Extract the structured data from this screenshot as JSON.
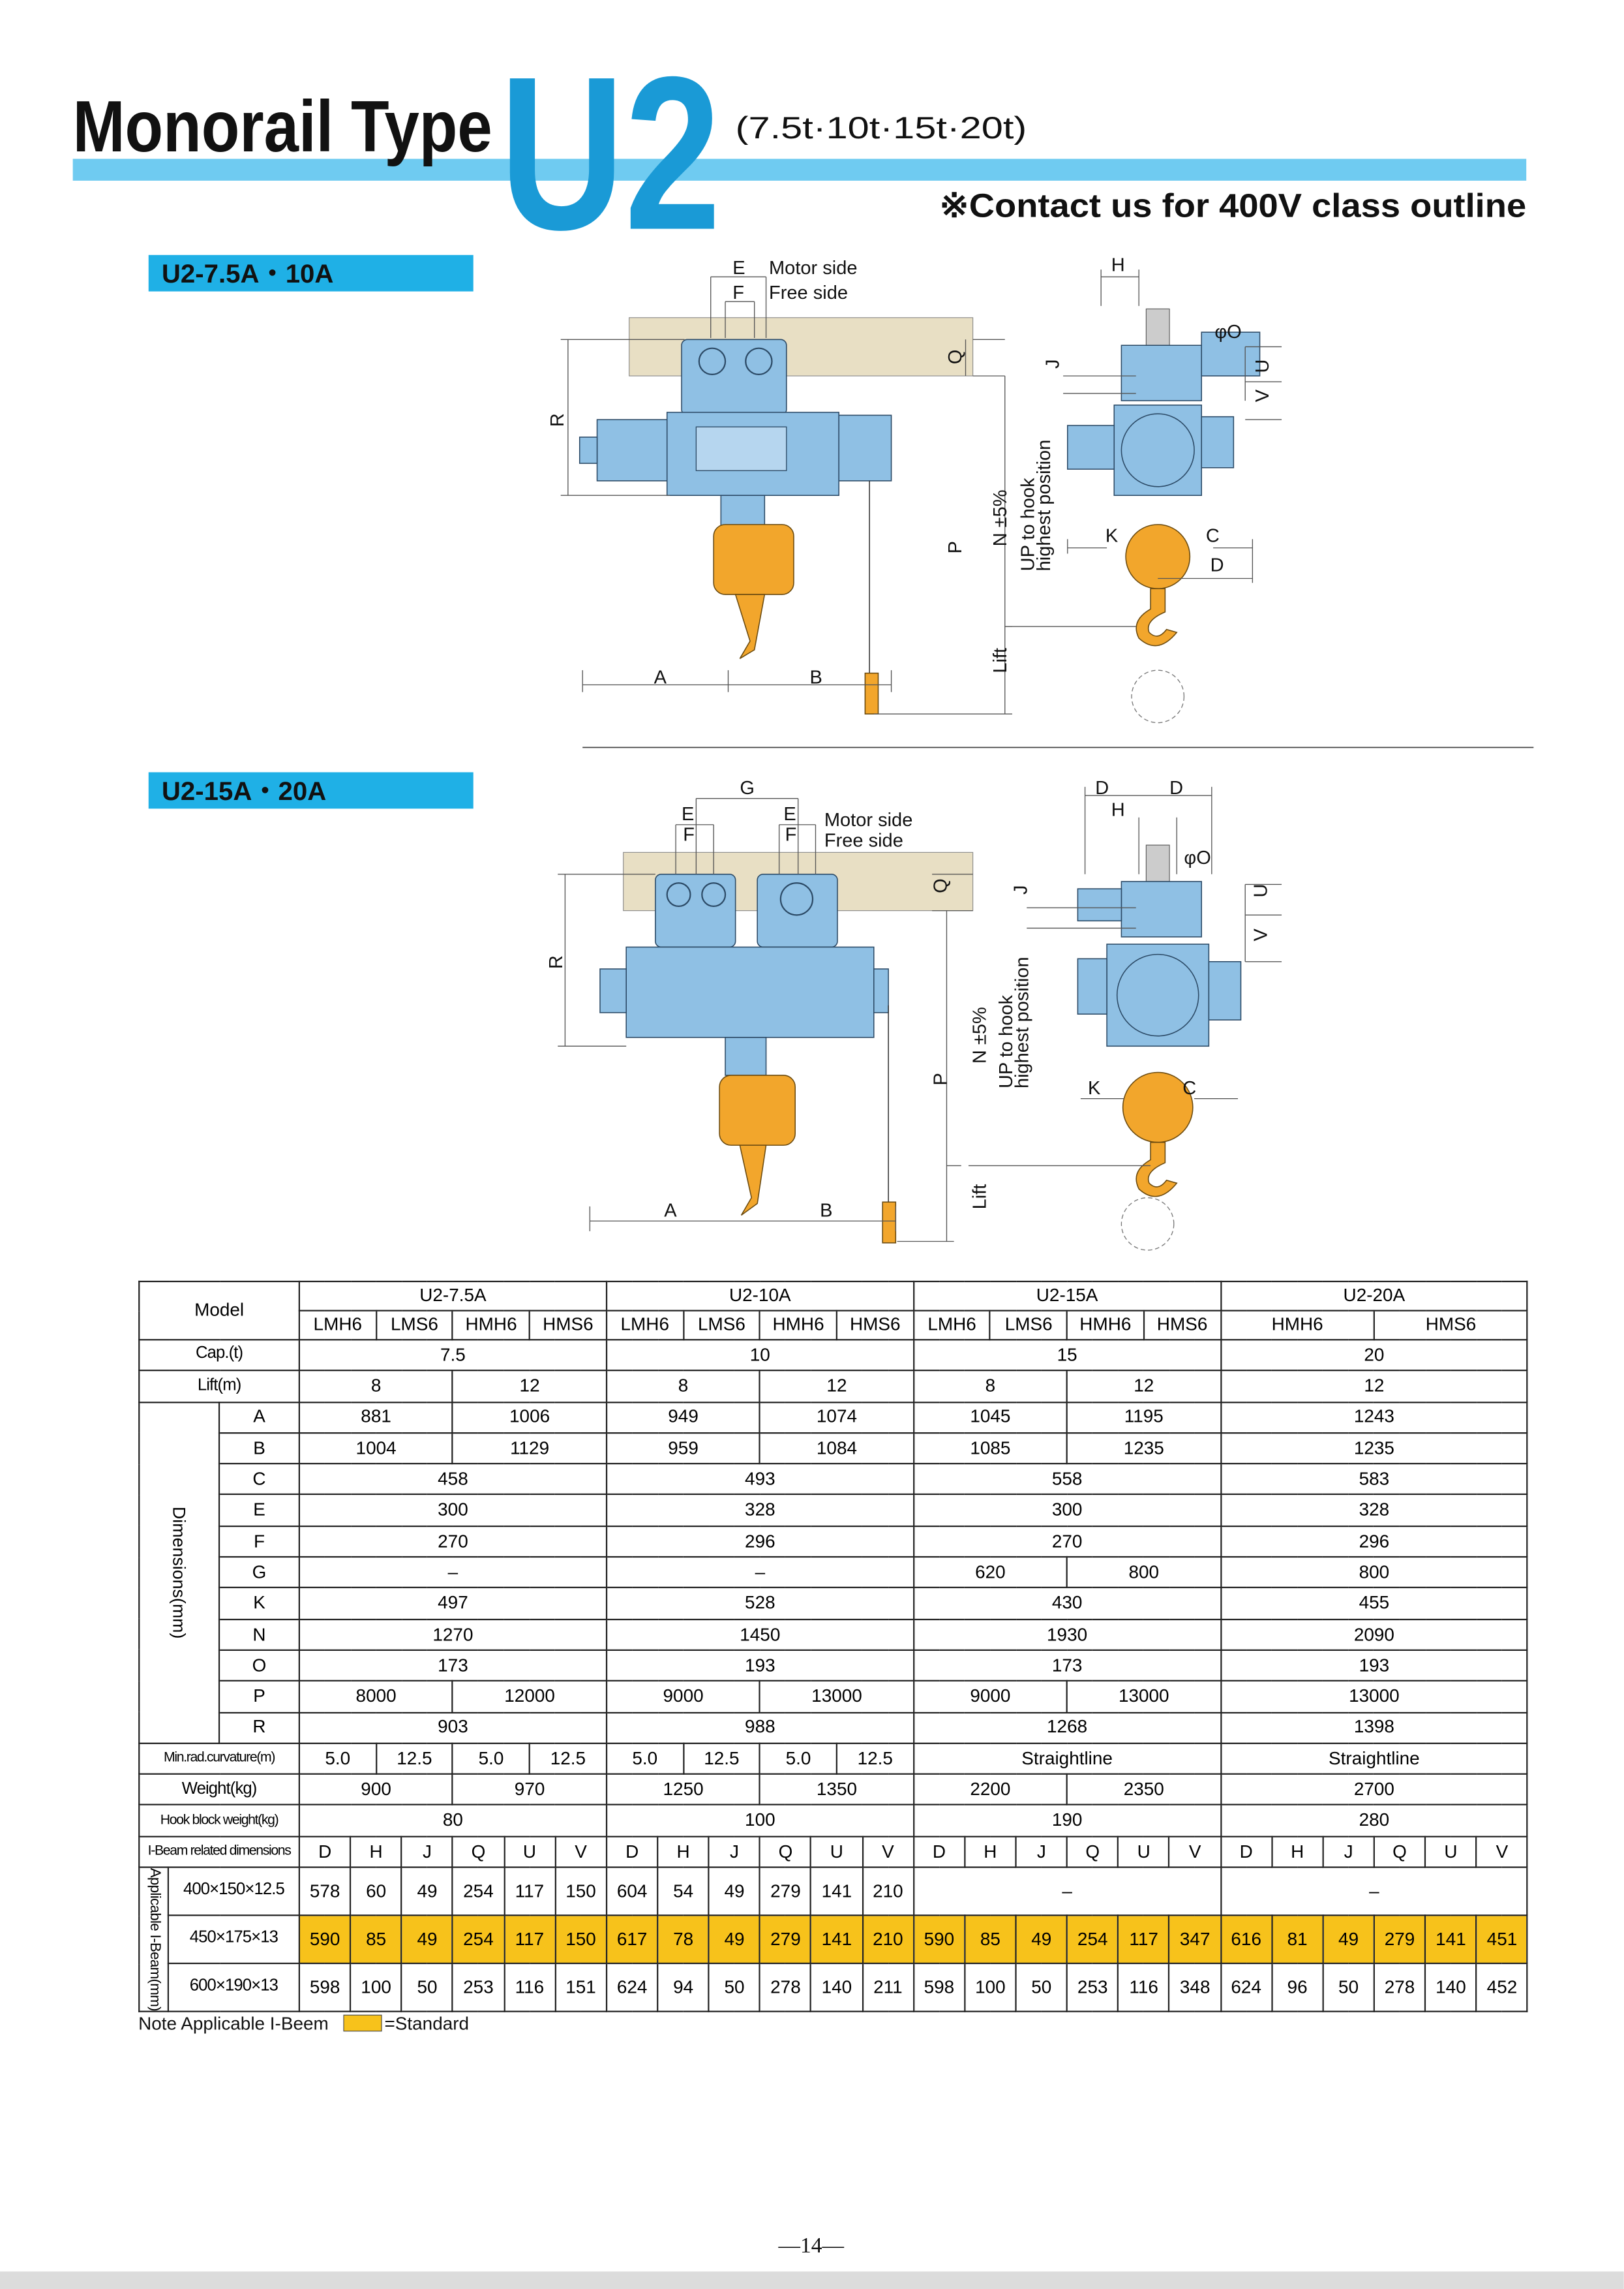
{
  "header": {
    "title": "Monorail Type",
    "model": "U2",
    "capacities": "(7.5t·10t·15t·20t)",
    "note": "※Contact us for 400V class outline"
  },
  "sections": [
    {
      "label": "U2-7.5A・10A",
      "front": [
        "E",
        "Motor side",
        "F",
        "Free side",
        "R",
        "Q",
        "P",
        "N ±5%",
        "UP to hook",
        "highest position",
        "Lift",
        "A",
        "B"
      ],
      "side": [
        "H",
        "φO",
        "J",
        "U",
        "V",
        "K",
        "C",
        "D"
      ]
    },
    {
      "label": "U2-15A・20A",
      "front": [
        "G",
        "E",
        "E",
        "F",
        "F",
        "Motor side",
        "Free side",
        "R",
        "Q",
        "P",
        "N ±5%",
        "UP to hook",
        "highest position",
        "Lift",
        "A",
        "B"
      ],
      "side": [
        "D",
        "D",
        "H",
        "φO",
        "J",
        "U",
        "V",
        "K",
        "C"
      ]
    }
  ],
  "table": {
    "model_header": "Model",
    "models": [
      "U2-7.5A",
      "U2-10A",
      "U2-15A",
      "U2-20A"
    ],
    "variants": [
      [
        "LMH6",
        "LMS6",
        "HMH6",
        "HMS6"
      ],
      [
        "LMH6",
        "LMS6",
        "HMH6",
        "HMS6"
      ],
      [
        "LMH6",
        "LMS6",
        "HMH6",
        "HMS6"
      ],
      [
        "HMH6",
        "HMS6"
      ]
    ],
    "rows_top": [
      {
        "label": "Cap.(t)",
        "values": [
          [
            7.5
          ],
          [
            10
          ],
          [
            15
          ],
          [
            20
          ]
        ]
      },
      {
        "label": "Lift(m)",
        "values": [
          [
            8,
            12
          ],
          [
            8,
            12
          ],
          [
            8,
            12
          ],
          [
            12
          ]
        ]
      }
    ],
    "dimensions": {
      "label": "Dimensions(mm)",
      "rows": [
        {
          "label": "A",
          "values": [
            [
              881,
              1006
            ],
            [
              949,
              1074
            ],
            [
              1045,
              1195
            ],
            [
              1243
            ]
          ]
        },
        {
          "label": "B",
          "values": [
            [
              1004,
              1129
            ],
            [
              959,
              1084
            ],
            [
              1085,
              1235
            ],
            [
              1235
            ]
          ]
        },
        {
          "label": "C",
          "values": [
            [
              458
            ],
            [
              493
            ],
            [
              558
            ],
            [
              583
            ]
          ]
        },
        {
          "label": "E",
          "values": [
            [
              300
            ],
            [
              328
            ],
            [
              300
            ],
            [
              328
            ]
          ]
        },
        {
          "label": "F",
          "values": [
            [
              270
            ],
            [
              296
            ],
            [
              270
            ],
            [
              296
            ]
          ]
        },
        {
          "label": "G",
          "values": [
            [
              "–"
            ],
            [
              "–"
            ],
            [
              620,
              800
            ],
            [
              800
            ]
          ]
        },
        {
          "label": "K",
          "values": [
            [
              497
            ],
            [
              528
            ],
            [
              430
            ],
            [
              455
            ]
          ]
        },
        {
          "label": "N",
          "values": [
            [
              1270
            ],
            [
              1450
            ],
            [
              1930
            ],
            [
              2090
            ]
          ]
        },
        {
          "label": "O",
          "values": [
            [
              173
            ],
            [
              193
            ],
            [
              173
            ],
            [
              193
            ]
          ]
        },
        {
          "label": "P",
          "values": [
            [
              8000,
              12000
            ],
            [
              9000,
              13000
            ],
            [
              9000,
              13000
            ],
            [
              13000
            ]
          ]
        },
        {
          "label": "R",
          "values": [
            [
              903
            ],
            [
              988
            ],
            [
              1268
            ],
            [
              1398
            ]
          ]
        }
      ]
    },
    "rows_bottom": [
      {
        "label": "Min.rad.curvature(m)",
        "values": [
          [
            "5.0",
            12.5,
            "5.0",
            12.5
          ],
          [
            "5.0",
            12.5,
            "5.0",
            12.5
          ],
          [
            "Straightline"
          ],
          [
            "Straightline"
          ]
        ]
      },
      {
        "label": "Weight(kg)",
        "values": [
          [
            900,
            970
          ],
          [
            1250,
            1350
          ],
          [
            2200,
            2350
          ],
          [
            2700
          ]
        ]
      },
      {
        "label": "Hook block weight(kg)",
        "values": [
          [
            80
          ],
          [
            100
          ],
          [
            190
          ],
          [
            280
          ]
        ]
      },
      {
        "label": "I-Beam related dimensions",
        "values": [
          [
            "D",
            "H",
            "J",
            "Q",
            "U",
            "V"
          ],
          [
            "D",
            "H",
            "J",
            "Q",
            "U",
            "V"
          ],
          [
            "D",
            "H",
            "J",
            "Q",
            "U",
            "V"
          ],
          [
            "D",
            "H",
            "J",
            "Q",
            "U",
            "V"
          ]
        ]
      }
    ],
    "beams": {
      "label": "Applicable I-Beam(mm)",
      "rows": [
        {
          "label": "400×150×12.5",
          "standard": false,
          "values": [
            [
              578,
              60,
              49,
              254,
              117,
              150
            ],
            [
              604,
              54,
              49,
              279,
              141,
              210
            ],
            [
              "–"
            ],
            [
              "–"
            ]
          ]
        },
        {
          "label": "450×175×13",
          "standard": true,
          "values": [
            [
              590,
              85,
              49,
              254,
              117,
              150
            ],
            [
              617,
              78,
              49,
              279,
              141,
              210
            ],
            [
              590,
              85,
              49,
              254,
              117,
              347
            ],
            [
              616,
              81,
              49,
              279,
              141,
              451
            ]
          ]
        },
        {
          "label": "600×190×13",
          "standard": false,
          "values": [
            [
              598,
              100,
              50,
              253,
              116,
              151
            ],
            [
              624,
              94,
              50,
              278,
              140,
              211
            ],
            [
              598,
              100,
              50,
              253,
              116,
              348
            ],
            [
              624,
              96,
              50,
              278,
              140,
              452
            ]
          ]
        }
      ]
    }
  },
  "footnote": {
    "text": "Note Applicable I-Beem",
    "standard": "=Standard"
  },
  "page_number": "—14—"
}
